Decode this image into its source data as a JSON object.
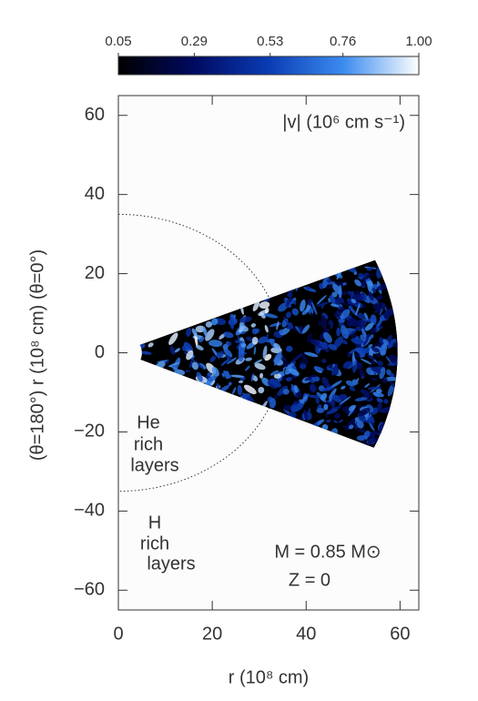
{
  "chart_data": {
    "type": "image",
    "xlabel": "r (10⁸ cm)",
    "ylabel": "(θ=180°) r (10⁸ cm) (θ=0°)",
    "xlim": [
      0,
      64
    ],
    "xticks": [
      0,
      20,
      40,
      60
    ],
    "ylim": [
      -65,
      65
    ],
    "yticks": [
      {
        "value": -60,
        "label": "−60"
      },
      {
        "value": -40,
        "label": "−40"
      },
      {
        "value": -20,
        "label": "−20"
      },
      0,
      20,
      40,
      60
    ],
    "colorbar": {
      "lim": [
        0.05,
        1.0
      ],
      "ticks": [
        0.05,
        0.29,
        0.53,
        0.76,
        {
          "value": 1.0,
          "label": "1.00"
        }
      ]
    },
    "colormap": [
      "#000000",
      "#000a60",
      "#0a3cb4",
      "#3c8cf0",
      "#ffffff"
    ],
    "annotations": [
      "|v| (10⁶ cm s⁻¹)",
      "He",
      "rich",
      "layers",
      "H",
      "rich",
      "layers",
      "M = 0.85 M⊙",
      "Z = 0"
    ]
  }
}
